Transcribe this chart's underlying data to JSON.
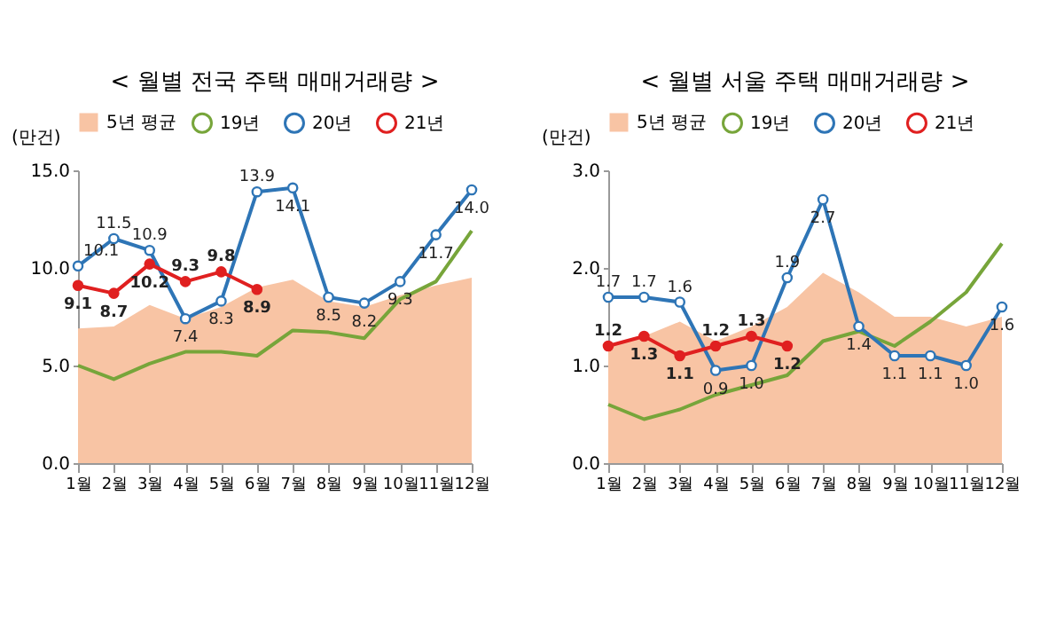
{
  "chart_data": [
    {
      "type": "line",
      "title": "< 월별 전국 주택 매매거래량 >",
      "ylabel": "(만건)",
      "categories": [
        "1월",
        "2월",
        "3월",
        "4월",
        "5월",
        "6월",
        "7월",
        "8월",
        "9월",
        "10월",
        "11월",
        "12월"
      ],
      "ylim": [
        0,
        15
      ],
      "yticks": [
        {
          "value": 0,
          "label": "0.0"
        },
        {
          "value": 5,
          "label": "5.0"
        },
        {
          "value": 10,
          "label": "10.0"
        },
        {
          "value": 15,
          "label": "15.0"
        }
      ],
      "legend": "top",
      "grid": false,
      "series": [
        {
          "name": "5년 평균",
          "type": "area",
          "color": "#f8c4a4",
          "values": [
            6.9,
            7.0,
            8.1,
            7.4,
            8.0,
            9.0,
            9.4,
            8.3,
            8.0,
            8.6,
            9.1,
            9.5
          ]
        },
        {
          "name": "19년",
          "type": "line",
          "color": "#77a53a",
          "marker": "none",
          "values": [
            5.0,
            4.3,
            5.1,
            5.7,
            5.7,
            5.5,
            6.8,
            6.7,
            6.4,
            8.4,
            9.3,
            11.9
          ]
        },
        {
          "name": "20년",
          "type": "line",
          "color": "#2e75b6",
          "marker": "circle",
          "values": [
            10.1,
            11.5,
            10.9,
            7.4,
            8.3,
            13.9,
            14.1,
            8.5,
            8.2,
            9.3,
            11.7,
            14.0
          ],
          "value_labels": [
            "10.1",
            "11.5",
            "10.9",
            "7.4",
            "8.3",
            "13.9",
            "14.1",
            "8.5",
            "8.2",
            "9.3",
            "11.7",
            "14.0"
          ]
        },
        {
          "name": "21년",
          "type": "line",
          "color": "#e02020",
          "marker": "circle",
          "values": [
            9.1,
            8.7,
            10.2,
            9.3,
            9.8,
            8.9,
            null,
            null,
            null,
            null,
            null,
            null
          ],
          "value_labels": [
            "9.1",
            "8.7",
            "10.2",
            "9.3",
            "9.8",
            "8.9",
            null,
            null,
            null,
            null,
            null,
            null
          ]
        }
      ]
    },
    {
      "type": "line",
      "title": "< 월별 서울 주택 매매거래량 >",
      "ylabel": "(만건)",
      "categories": [
        "1월",
        "2월",
        "3월",
        "4월",
        "5월",
        "6월",
        "7월",
        "8월",
        "9월",
        "10월",
        "11월",
        "12월"
      ],
      "ylim": [
        0,
        3
      ],
      "yticks": [
        {
          "value": 0,
          "label": "0.0"
        },
        {
          "value": 1,
          "label": "1.0"
        },
        {
          "value": 2,
          "label": "2.0"
        },
        {
          "value": 3,
          "label": "3.0"
        }
      ],
      "legend": "top",
      "grid": false,
      "series": [
        {
          "name": "5년 평균",
          "type": "area",
          "color": "#f8c4a4",
          "values": [
            1.2,
            1.3,
            1.45,
            1.25,
            1.4,
            1.6,
            1.95,
            1.75,
            1.5,
            1.5,
            1.4,
            1.5
          ]
        },
        {
          "name": "19년",
          "type": "line",
          "color": "#77a53a",
          "marker": "none",
          "values": [
            0.6,
            0.45,
            0.55,
            0.7,
            0.8,
            0.9,
            1.25,
            1.35,
            1.2,
            1.45,
            1.75,
            2.25
          ]
        },
        {
          "name": "20년",
          "type": "line",
          "color": "#2e75b6",
          "marker": "circle",
          "values": [
            1.7,
            1.7,
            1.65,
            0.95,
            1.0,
            1.9,
            2.7,
            1.4,
            1.1,
            1.1,
            1.0,
            1.6
          ],
          "value_labels": [
            "1.7",
            "1.7",
            "1.6",
            "0.9",
            "1.0",
            "1.9",
            "2.7",
            "1.4",
            "1.1",
            "1.1",
            "1.0",
            "1.6"
          ]
        },
        {
          "name": "21년",
          "type": "line",
          "color": "#e02020",
          "marker": "circle",
          "values": [
            1.2,
            1.3,
            1.1,
            1.2,
            1.3,
            1.2,
            null,
            null,
            null,
            null,
            null,
            null
          ],
          "value_labels": [
            "1.2",
            "1.3",
            "1.1",
            "1.2",
            "1.3",
            "1.2",
            null,
            null,
            null,
            null,
            null,
            null
          ]
        }
      ]
    }
  ]
}
